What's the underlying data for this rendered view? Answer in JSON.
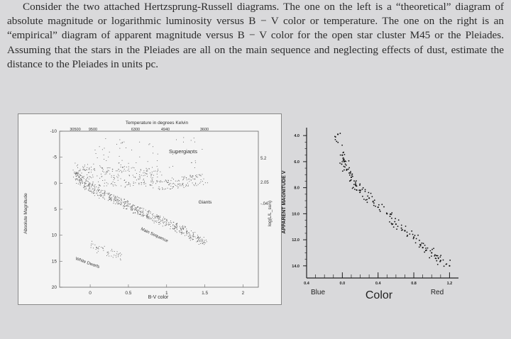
{
  "problem": {
    "text": "Consider the two attached Hertzsprung-Russell diagrams. The one on the left is a “theoretical” diagram of absolute magnitude or logarithmic luminosity versus B − V color or temperature. The one on the right is an “empirical” diagram of apparent magnitude versus B − V color for the open star cluster M45 or the Pleiades. Assuming that the stars in the Pleiades are all on the main sequence and neglecting effects of dust, estimate the distance to the Pleiades in units pc."
  },
  "left_chart": {
    "top_title": "Temperature in degrees Kelvin",
    "temp_ticks": [
      "30500",
      "9500",
      "6300",
      "4940",
      "3600"
    ],
    "y_label": "Absolute Magnitude",
    "y_ticks": [
      "-10",
      "-5",
      "0",
      "5",
      "10",
      "15",
      "20"
    ],
    "x_label": "B-V color",
    "x_ticks": [
      "0",
      "0.5",
      "1",
      "1.5",
      "2"
    ],
    "right_label": "log(L/L_sun)",
    "right_ticks": [
      "5.2",
      "2.05",
      "-.04"
    ],
    "annotations": {
      "supergiants": "Supergiants",
      "giants": "Giants",
      "main_sequence": "Main Sequence",
      "white_dwarfs": "White Dwarfs"
    }
  },
  "right_chart": {
    "y_label": "APPARENT MAGNITUDE  V",
    "y_ticks": [
      "4.0",
      "6.0",
      "8.0",
      "10.0",
      "12.0",
      "14.0"
    ],
    "x_ticks": [
      "0.4",
      "0.0",
      "0.4",
      "0.8",
      "1.2"
    ],
    "x_label": "Color",
    "x_left": "Blue",
    "x_right": "Red"
  },
  "chart_data": [
    {
      "type": "scatter",
      "title": "Temperature in degrees Kelvin",
      "xlabel": "B-V color",
      "ylabel": "Absolute Magnitude",
      "xlim": [
        -0.4,
        2.2
      ],
      "ylim": [
        20,
        -10
      ],
      "x_ticks": [
        0,
        0.5,
        1,
        1.5,
        2
      ],
      "y_ticks": [
        -10,
        -5,
        0,
        5,
        10,
        15,
        20
      ],
      "regions": {
        "main_sequence": [
          [
            -0.2,
            -2
          ],
          [
            0.0,
            1
          ],
          [
            0.3,
            3
          ],
          [
            0.6,
            5
          ],
          [
            0.9,
            7
          ],
          [
            1.2,
            9
          ],
          [
            1.5,
            11.5
          ]
        ],
        "giants": [
          [
            0.9,
            0.5
          ],
          [
            1.1,
            0
          ],
          [
            1.3,
            -0.5
          ],
          [
            1.5,
            -1
          ]
        ],
        "supergiants": [
          [
            0.0,
            -6
          ],
          [
            0.5,
            -6
          ],
          [
            1.0,
            -6
          ],
          [
            1.5,
            -6
          ]
        ],
        "white_dwarfs": [
          [
            0.0,
            12
          ],
          [
            0.2,
            13
          ],
          [
            0.4,
            14
          ]
        ]
      }
    },
    {
      "type": "scatter",
      "xlabel": "Color",
      "ylabel": "APPARENT MAGNITUDE  V",
      "xlim": [
        -0.4,
        1.3
      ],
      "ylim": [
        14.5,
        3.5
      ],
      "points": [
        [
          -0.05,
          3.9
        ],
        [
          0.0,
          5.5
        ],
        [
          0.02,
          6.0
        ],
        [
          0.05,
          6.6
        ],
        [
          0.1,
          7.2
        ],
        [
          0.15,
          7.8
        ],
        [
          0.2,
          8.2
        ],
        [
          0.3,
          8.8
        ],
        [
          0.4,
          9.5
        ],
        [
          0.5,
          10.0
        ],
        [
          0.6,
          10.8
        ],
        [
          0.7,
          11.3
        ],
        [
          0.8,
          11.8
        ],
        [
          0.9,
          12.6
        ],
        [
          1.0,
          13.0
        ],
        [
          1.1,
          13.6
        ],
        [
          1.2,
          14.0
        ]
      ]
    }
  ]
}
